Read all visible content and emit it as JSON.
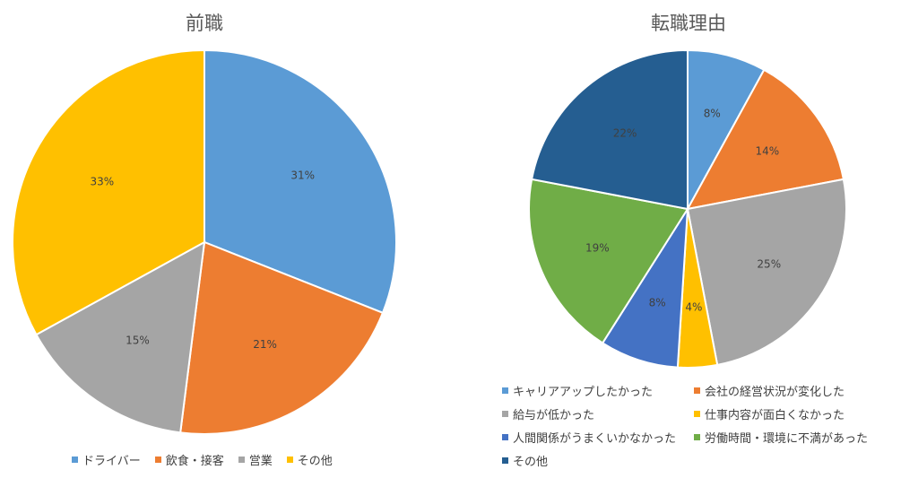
{
  "chart_data": [
    {
      "type": "pie",
      "title": "前職",
      "categories": [
        "ドライバー",
        "飲食・接客",
        "営業",
        "その他"
      ],
      "values": [
        31,
        21,
        15,
        33
      ],
      "labels": [
        "31%",
        "21%",
        "15%",
        "33%"
      ],
      "colors": [
        "#5B9BD5",
        "#ED7D31",
        "#A5A5A5",
        "#FFC000"
      ],
      "legend_position": "bottom"
    },
    {
      "type": "pie",
      "title": "転職理由",
      "categories": [
        "キャリアアップしたかった",
        "会社の経営状況が変化した",
        "給与が低かった",
        "仕事内容が面白くなかった",
        "人間関係がうまくいかなかった",
        "労働時間・環境に不満があった",
        "その他"
      ],
      "values": [
        8,
        14,
        25,
        4,
        8,
        19,
        22
      ],
      "labels": [
        "8%",
        "14%",
        "25%",
        "4%",
        "8%",
        "19%",
        "22%"
      ],
      "colors": [
        "#5B9BD5",
        "#ED7D31",
        "#A5A5A5",
        "#FFC000",
        "#4472C4",
        "#70AD47",
        "#255E91"
      ],
      "legend_position": "bottom"
    }
  ]
}
